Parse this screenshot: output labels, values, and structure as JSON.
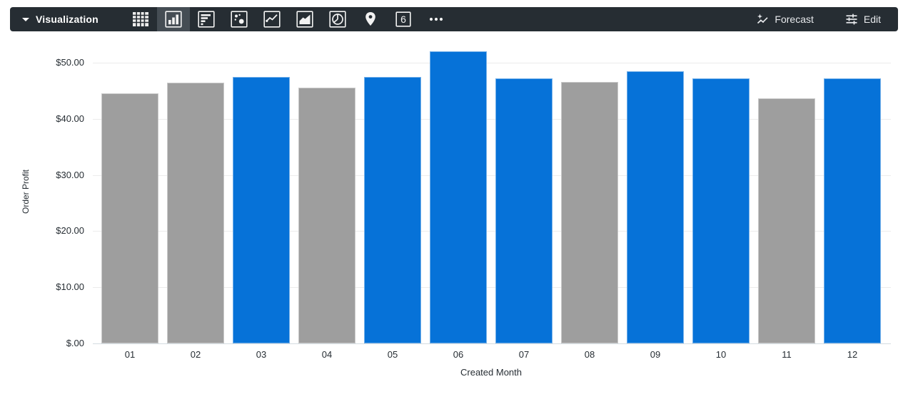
{
  "toolbar": {
    "bg_color": "#262D33",
    "selected_cell_color": "#454D54",
    "title": "Visualization",
    "vis_types": [
      {
        "name": "table",
        "selected": false
      },
      {
        "name": "column-chart",
        "selected": true
      },
      {
        "name": "bar-chart",
        "selected": false
      },
      {
        "name": "scatter-chart",
        "selected": false
      },
      {
        "name": "line-chart",
        "selected": false
      },
      {
        "name": "area-chart",
        "selected": false
      },
      {
        "name": "pie-chart",
        "selected": false
      },
      {
        "name": "map",
        "selected": false
      },
      {
        "name": "single-value",
        "selected": false
      },
      {
        "name": "more",
        "selected": false
      }
    ],
    "forecast_label": "Forecast",
    "edit_label": "Edit"
  },
  "chart_data": {
    "type": "bar",
    "title": "",
    "xlabel": "Created Month",
    "ylabel": "Order Profit",
    "categories": [
      "01",
      "02",
      "03",
      "04",
      "05",
      "06",
      "07",
      "08",
      "09",
      "10",
      "11",
      "12"
    ],
    "values": [
      44.5,
      46.4,
      47.5,
      45.5,
      47.5,
      52.0,
      47.2,
      46.6,
      48.5,
      47.2,
      43.7,
      47.2
    ],
    "bar_colors": [
      "gray",
      "gray",
      "blue",
      "gray",
      "blue",
      "blue",
      "blue",
      "gray",
      "blue",
      "blue",
      "gray",
      "blue"
    ],
    "palette": {
      "blue": "#0672D8",
      "gray": "#9E9E9E"
    },
    "ylim": [
      0,
      52
    ],
    "grid": true,
    "legend": "none",
    "y_ticks": [
      {
        "value": 0,
        "label": "$.00"
      },
      {
        "value": 10,
        "label": "$10.00"
      },
      {
        "value": 20,
        "label": "$20.00"
      },
      {
        "value": 30,
        "label": "$30.00"
      },
      {
        "value": 40,
        "label": "$40.00"
      },
      {
        "value": 50,
        "label": "$50.00"
      }
    ]
  }
}
